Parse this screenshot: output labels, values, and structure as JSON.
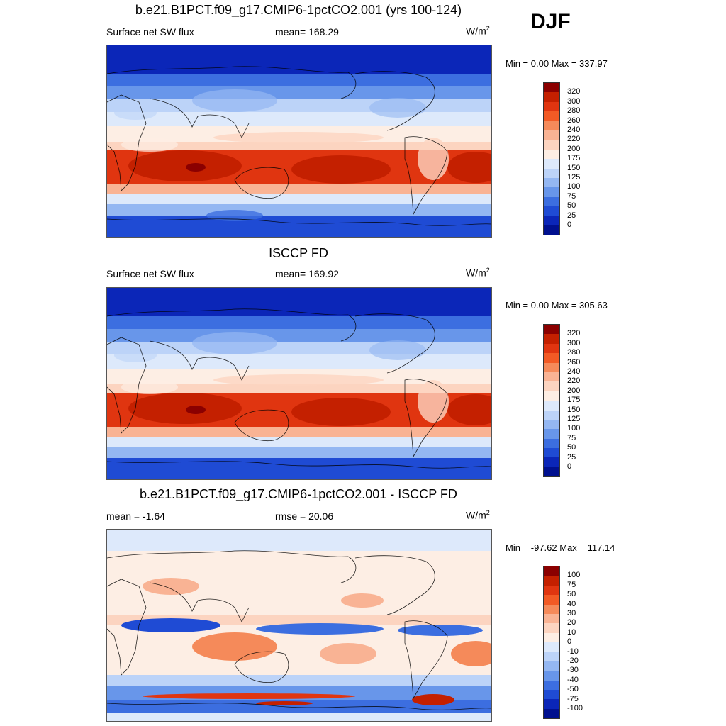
{
  "season": "DJF",
  "panels": [
    {
      "title": "b.e21.B1PCT.f09_g17.CMIP6-1pctCO2.001 (yrs 100-124)",
      "left_label": "Surface net SW flux",
      "center_label": "mean= 168.29",
      "units": "W/m",
      "units_sup": "2",
      "minmax": "Min =   0.00 Max = 337.97",
      "scale_labels": [
        "320",
        "300",
        "280",
        "260",
        "240",
        "220",
        "200",
        "175",
        "150",
        "125",
        "100",
        "75",
        "50",
        "25",
        "0"
      ],
      "colors": [
        "#8b0000",
        "#c42000",
        "#e03510",
        "#f25a25",
        "#f58a5a",
        "#f9b394",
        "#fcd4c0",
        "#fdeee4",
        "#dde9fb",
        "#bcd3f8",
        "#94b7f2",
        "#6896ea",
        "#3c6ee0",
        "#1f4bd4",
        "#0b26b8",
        "#00108f"
      ],
      "field_type": "sw"
    },
    {
      "title": "ISCCP FD",
      "left_label": "Surface net SW flux",
      "center_label": "mean= 169.92",
      "units": "W/m",
      "units_sup": "2",
      "minmax": "Min =   0.00 Max = 305.63",
      "scale_labels": [
        "320",
        "300",
        "280",
        "260",
        "240",
        "220",
        "200",
        "175",
        "150",
        "125",
        "100",
        "75",
        "50",
        "25",
        "0"
      ],
      "colors": [
        "#8b0000",
        "#c42000",
        "#e03510",
        "#f25a25",
        "#f58a5a",
        "#f9b394",
        "#fcd4c0",
        "#fdeee4",
        "#dde9fb",
        "#bcd3f8",
        "#94b7f2",
        "#6896ea",
        "#3c6ee0",
        "#1f4bd4",
        "#0b26b8",
        "#00108f"
      ],
      "field_type": "sw_obs"
    },
    {
      "title": "b.e21.B1PCT.f09_g17.CMIP6-1pctCO2.001 - ISCCP FD",
      "left_label": "mean =  -1.64",
      "center_label": "rmse =  20.06",
      "units": "W/m",
      "units_sup": "2",
      "minmax": "Min = -97.62 Max = 117.14",
      "scale_labels": [
        "100",
        "75",
        "50",
        "40",
        "30",
        "20",
        "10",
        "0",
        "-10",
        "-20",
        "-30",
        "-40",
        "-50",
        "-75",
        "-100"
      ],
      "colors": [
        "#8b0000",
        "#c42000",
        "#e03510",
        "#f25a25",
        "#f58a5a",
        "#f9b394",
        "#fcd4c0",
        "#fdeee4",
        "#dde9fb",
        "#bcd3f8",
        "#94b7f2",
        "#6896ea",
        "#3c6ee0",
        "#1f4bd4",
        "#0b26b8",
        "#00108f"
      ],
      "field_type": "diff"
    }
  ]
}
